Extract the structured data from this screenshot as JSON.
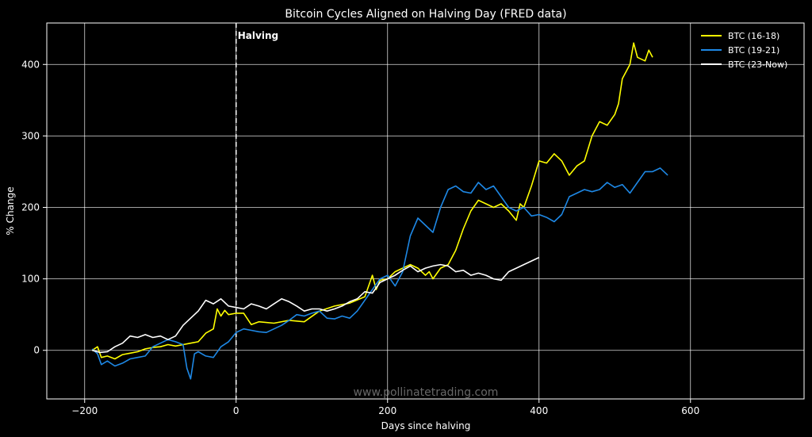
{
  "chart_data": {
    "type": "line",
    "title": "Bitcoin Cycles Aligned on Halving Day  (FRED data)",
    "xlabel": "Days since halving",
    "ylabel": "% Change",
    "xlim": [
      -250,
      750
    ],
    "ylim": [
      -68,
      458
    ],
    "x_ticks": [
      -200,
      0,
      200,
      400,
      600
    ],
    "x_tick_labels": [
      "−200",
      "0",
      "200",
      "400",
      "600"
    ],
    "y_ticks": [
      0,
      100,
      200,
      300,
      400
    ],
    "y_tick_labels": [
      "0",
      "100",
      "200",
      "300",
      "400"
    ],
    "grid": true,
    "legend_position": "top-right",
    "annotation": {
      "text": "Halving",
      "x": 0
    },
    "watermark": "www.pollinatetrading.com",
    "series": [
      {
        "name": "BTC (16-18)",
        "color": "#ffff00",
        "points": [
          [
            -190,
            0
          ],
          [
            -183,
            5
          ],
          [
            -178,
            -10
          ],
          [
            -170,
            -8
          ],
          [
            -160,
            -12
          ],
          [
            -150,
            -6
          ],
          [
            -140,
            -4
          ],
          [
            -130,
            -2
          ],
          [
            -120,
            2
          ],
          [
            -110,
            4
          ],
          [
            -100,
            5
          ],
          [
            -90,
            8
          ],
          [
            -80,
            6
          ],
          [
            -70,
            8
          ],
          [
            -60,
            10
          ],
          [
            -50,
            12
          ],
          [
            -40,
            24
          ],
          [
            -30,
            30
          ],
          [
            -25,
            58
          ],
          [
            -20,
            48
          ],
          [
            -15,
            56
          ],
          [
            -10,
            50
          ],
          [
            0,
            52
          ],
          [
            10,
            52
          ],
          [
            20,
            36
          ],
          [
            30,
            40
          ],
          [
            50,
            38
          ],
          [
            70,
            42
          ],
          [
            90,
            40
          ],
          [
            110,
            55
          ],
          [
            130,
            62
          ],
          [
            150,
            66
          ],
          [
            170,
            75
          ],
          [
            180,
            105
          ],
          [
            185,
            85
          ],
          [
            190,
            98
          ],
          [
            200,
            100
          ],
          [
            210,
            110
          ],
          [
            220,
            115
          ],
          [
            230,
            120
          ],
          [
            240,
            115
          ],
          [
            250,
            105
          ],
          [
            255,
            110
          ],
          [
            260,
            100
          ],
          [
            270,
            115
          ],
          [
            280,
            120
          ],
          [
            290,
            140
          ],
          [
            300,
            170
          ],
          [
            310,
            195
          ],
          [
            320,
            210
          ],
          [
            330,
            205
          ],
          [
            340,
            200
          ],
          [
            350,
            205
          ],
          [
            360,
            195
          ],
          [
            370,
            182
          ],
          [
            375,
            205
          ],
          [
            380,
            200
          ],
          [
            390,
            230
          ],
          [
            400,
            265
          ],
          [
            410,
            262
          ],
          [
            420,
            275
          ],
          [
            430,
            265
          ],
          [
            440,
            245
          ],
          [
            450,
            258
          ],
          [
            460,
            265
          ],
          [
            470,
            300
          ],
          [
            480,
            320
          ],
          [
            490,
            315
          ],
          [
            500,
            330
          ],
          [
            505,
            345
          ],
          [
            510,
            380
          ],
          [
            520,
            400
          ],
          [
            525,
            430
          ],
          [
            530,
            410
          ],
          [
            540,
            405
          ],
          [
            545,
            420
          ],
          [
            550,
            410
          ]
        ]
      },
      {
        "name": "BTC (19-21)",
        "color": "#1e88e5",
        "points": [
          [
            -190,
            2
          ],
          [
            -183,
            -5
          ],
          [
            -178,
            -20
          ],
          [
            -170,
            -15
          ],
          [
            -160,
            -22
          ],
          [
            -150,
            -18
          ],
          [
            -140,
            -12
          ],
          [
            -130,
            -10
          ],
          [
            -120,
            -8
          ],
          [
            -110,
            5
          ],
          [
            -100,
            10
          ],
          [
            -90,
            15
          ],
          [
            -80,
            12
          ],
          [
            -70,
            8
          ],
          [
            -65,
            -25
          ],
          [
            -60,
            -40
          ],
          [
            -55,
            -5
          ],
          [
            -50,
            -2
          ],
          [
            -40,
            -8
          ],
          [
            -30,
            -10
          ],
          [
            -20,
            5
          ],
          [
            -10,
            12
          ],
          [
            0,
            25
          ],
          [
            10,
            30
          ],
          [
            20,
            28
          ],
          [
            30,
            26
          ],
          [
            40,
            25
          ],
          [
            50,
            30
          ],
          [
            60,
            35
          ],
          [
            70,
            42
          ],
          [
            80,
            50
          ],
          [
            90,
            48
          ],
          [
            100,
            52
          ],
          [
            110,
            55
          ],
          [
            120,
            45
          ],
          [
            130,
            44
          ],
          [
            140,
            48
          ],
          [
            150,
            45
          ],
          [
            160,
            55
          ],
          [
            170,
            70
          ],
          [
            180,
            85
          ],
          [
            190,
            100
          ],
          [
            200,
            105
          ],
          [
            210,
            90
          ],
          [
            220,
            110
          ],
          [
            230,
            160
          ],
          [
            240,
            185
          ],
          [
            250,
            175
          ],
          [
            260,
            165
          ],
          [
            270,
            200
          ],
          [
            280,
            225
          ],
          [
            290,
            230
          ],
          [
            300,
            222
          ],
          [
            310,
            220
          ],
          [
            320,
            235
          ],
          [
            330,
            225
          ],
          [
            340,
            230
          ],
          [
            350,
            215
          ],
          [
            360,
            200
          ],
          [
            370,
            195
          ],
          [
            380,
            200
          ],
          [
            390,
            188
          ],
          [
            400,
            190
          ],
          [
            410,
            186
          ],
          [
            420,
            180
          ],
          [
            430,
            190
          ],
          [
            440,
            215
          ],
          [
            450,
            220
          ],
          [
            460,
            225
          ],
          [
            470,
            222
          ],
          [
            480,
            225
          ],
          [
            490,
            235
          ],
          [
            500,
            228
          ],
          [
            510,
            232
          ],
          [
            520,
            220
          ],
          [
            530,
            235
          ],
          [
            540,
            250
          ],
          [
            550,
            250
          ],
          [
            560,
            255
          ],
          [
            570,
            245
          ]
        ]
      },
      {
        "name": "BTC (23-Now)",
        "color": "#ffffff",
        "points": [
          [
            -190,
            0
          ],
          [
            -180,
            -3
          ],
          [
            -170,
            -2
          ],
          [
            -160,
            5
          ],
          [
            -150,
            10
          ],
          [
            -140,
            20
          ],
          [
            -130,
            18
          ],
          [
            -120,
            22
          ],
          [
            -110,
            18
          ],
          [
            -100,
            20
          ],
          [
            -90,
            15
          ],
          [
            -80,
            20
          ],
          [
            -70,
            35
          ],
          [
            -60,
            45
          ],
          [
            -50,
            55
          ],
          [
            -40,
            70
          ],
          [
            -30,
            65
          ],
          [
            -20,
            72
          ],
          [
            -10,
            62
          ],
          [
            0,
            60
          ],
          [
            10,
            58
          ],
          [
            20,
            65
          ],
          [
            30,
            62
          ],
          [
            40,
            58
          ],
          [
            50,
            65
          ],
          [
            60,
            72
          ],
          [
            70,
            68
          ],
          [
            80,
            62
          ],
          [
            90,
            55
          ],
          [
            100,
            58
          ],
          [
            110,
            58
          ],
          [
            120,
            55
          ],
          [
            130,
            58
          ],
          [
            140,
            62
          ],
          [
            150,
            68
          ],
          [
            160,
            72
          ],
          [
            170,
            82
          ],
          [
            180,
            80
          ],
          [
            190,
            95
          ],
          [
            200,
            100
          ],
          [
            210,
            105
          ],
          [
            220,
            112
          ],
          [
            230,
            118
          ],
          [
            240,
            110
          ],
          [
            250,
            115
          ],
          [
            260,
            118
          ],
          [
            270,
            120
          ],
          [
            280,
            118
          ],
          [
            290,
            110
          ],
          [
            300,
            112
          ],
          [
            310,
            105
          ],
          [
            320,
            108
          ],
          [
            330,
            105
          ],
          [
            340,
            100
          ],
          [
            350,
            98
          ],
          [
            360,
            110
          ],
          [
            370,
            115
          ],
          [
            380,
            120
          ],
          [
            390,
            125
          ],
          [
            400,
            130
          ]
        ]
      }
    ]
  }
}
